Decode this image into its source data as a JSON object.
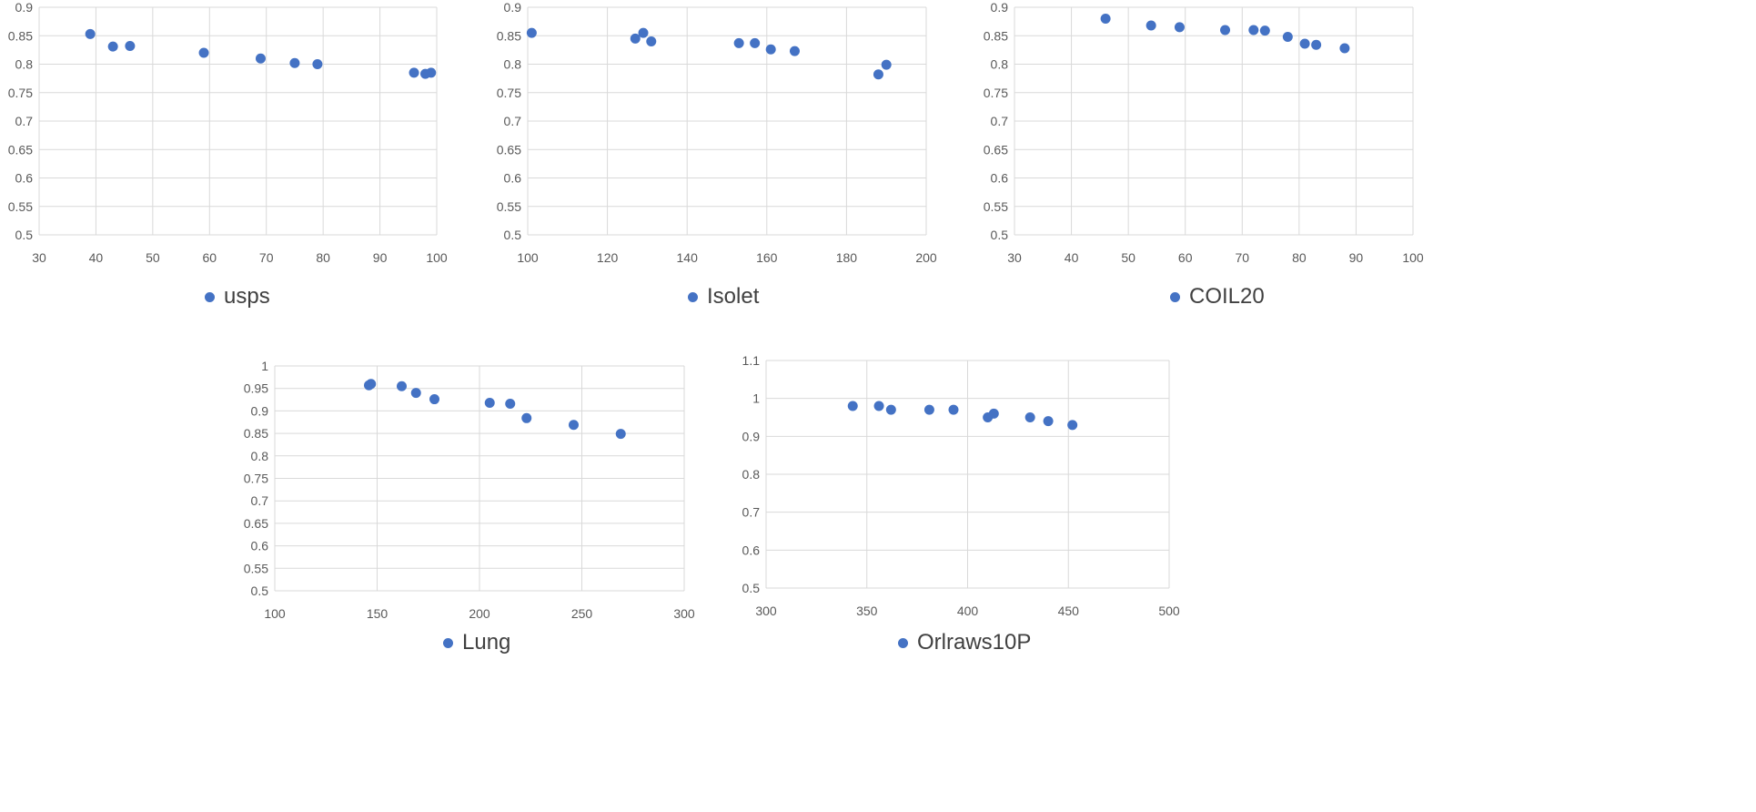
{
  "colors": {
    "marker": "#4472C4",
    "grid": "#D9D9D9",
    "tick_text": "#595959",
    "legend_text": "#404040"
  },
  "chart_data": [
    {
      "type": "scatter",
      "legend": "usps",
      "xlim": [
        30,
        100
      ],
      "xticks": [
        30,
        40,
        50,
        60,
        70,
        80,
        90,
        100
      ],
      "ylim": [
        0.5,
        0.9
      ],
      "yticks": [
        "0.5",
        "0.55",
        "0.6",
        "0.65",
        "0.7",
        "0.75",
        "0.8",
        "0.85",
        "0.9"
      ],
      "points": [
        [
          39,
          0.853
        ],
        [
          43,
          0.831
        ],
        [
          46,
          0.832
        ],
        [
          59,
          0.82
        ],
        [
          69,
          0.81
        ],
        [
          75,
          0.802
        ],
        [
          79,
          0.8
        ],
        [
          96,
          0.785
        ],
        [
          98,
          0.783
        ],
        [
          99,
          0.785
        ]
      ]
    },
    {
      "type": "scatter",
      "legend": "Isolet",
      "xlim": [
        100,
        200
      ],
      "xticks": [
        100,
        120,
        140,
        160,
        180,
        200
      ],
      "ylim": [
        0.5,
        0.9
      ],
      "yticks": [
        "0.5",
        "0.55",
        "0.6",
        "0.65",
        "0.7",
        "0.75",
        "0.8",
        "0.85",
        "0.9"
      ],
      "points": [
        [
          101,
          0.855
        ],
        [
          127,
          0.845
        ],
        [
          129,
          0.855
        ],
        [
          131,
          0.84
        ],
        [
          153,
          0.837
        ],
        [
          157,
          0.837
        ],
        [
          161,
          0.826
        ],
        [
          167,
          0.823
        ],
        [
          188,
          0.782
        ],
        [
          190,
          0.799
        ]
      ]
    },
    {
      "type": "scatter",
      "legend": "COIL20",
      "xlim": [
        30,
        100
      ],
      "xticks": [
        30,
        40,
        50,
        60,
        70,
        80,
        90,
        100
      ],
      "ylim": [
        0.5,
        0.9
      ],
      "yticks": [
        "0.5",
        "0.55",
        "0.6",
        "0.65",
        "0.7",
        "0.75",
        "0.8",
        "0.85",
        "0.9"
      ],
      "points": [
        [
          46,
          0.88
        ],
        [
          54,
          0.868
        ],
        [
          59,
          0.865
        ],
        [
          67,
          0.86
        ],
        [
          72,
          0.86
        ],
        [
          74,
          0.859
        ],
        [
          78,
          0.848
        ],
        [
          81,
          0.836
        ],
        [
          83,
          0.834
        ],
        [
          88,
          0.828
        ]
      ]
    },
    {
      "type": "scatter",
      "legend": "Lung",
      "xlim": [
        100,
        300
      ],
      "xticks": [
        100,
        150,
        200,
        250,
        300
      ],
      "ylim": [
        0.5,
        1.0
      ],
      "yticks": [
        "0.5",
        "0.55",
        "0.6",
        "0.65",
        "0.7",
        "0.75",
        "0.8",
        "0.85",
        "0.9",
        "0.95",
        "1"
      ],
      "points": [
        [
          146,
          0.957
        ],
        [
          147,
          0.96
        ],
        [
          162,
          0.955
        ],
        [
          169,
          0.94
        ],
        [
          178,
          0.926
        ],
        [
          205,
          0.918
        ],
        [
          215,
          0.916
        ],
        [
          223,
          0.884
        ],
        [
          246,
          0.869
        ],
        [
          269,
          0.849
        ]
      ]
    },
    {
      "type": "scatter",
      "legend": "Orlraws10P",
      "xlim": [
        300,
        500
      ],
      "xticks": [
        300,
        350,
        400,
        450,
        500
      ],
      "ylim": [
        0.5,
        1.1
      ],
      "yticks": [
        "0.5",
        "0.6",
        "0.7",
        "0.8",
        "0.9",
        "1",
        "1.1"
      ],
      "points": [
        [
          343,
          0.98
        ],
        [
          356,
          0.98
        ],
        [
          362,
          0.97
        ],
        [
          381,
          0.97
        ],
        [
          393,
          0.97
        ],
        [
          410,
          0.95
        ],
        [
          413,
          0.96
        ],
        [
          431,
          0.95
        ],
        [
          440,
          0.94
        ],
        [
          452,
          0.93
        ]
      ]
    }
  ]
}
